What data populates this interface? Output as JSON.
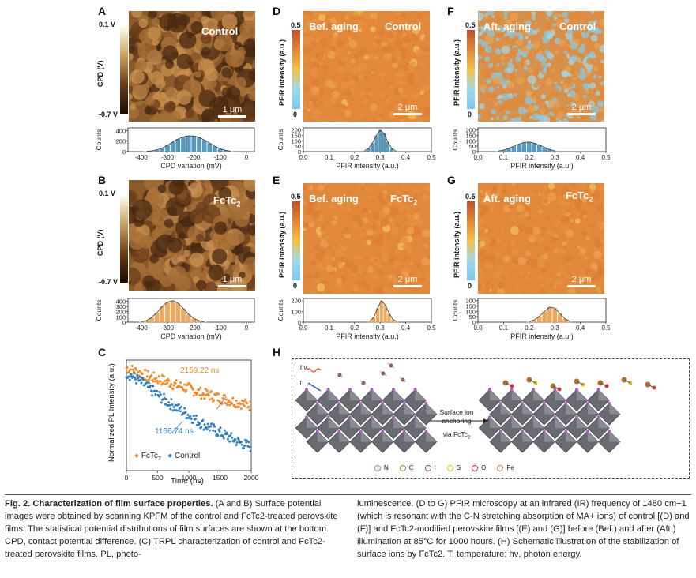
{
  "panels": {
    "A": {
      "letter": "A",
      "label": "Control",
      "cbar_top": "0.1 V",
      "cbar_bottom": "-0.7 V",
      "cbar_title": "CPD (V)",
      "scale": "1 μm",
      "hist_ylabel": "Counts",
      "hist_xlabel": "CPD variation (mV)",
      "hist_xticks": [
        "-400",
        "-300",
        "-200",
        "-100",
        "0"
      ],
      "hist_yticks": [
        "400",
        "200",
        "0"
      ],
      "color": "#2f80b0"
    },
    "B": {
      "letter": "B",
      "label": "FcTc",
      "label_sub": "2",
      "cbar_top": "0.1 V",
      "cbar_bottom": "-0.7 V",
      "cbar_title": "CPD (V)",
      "scale": "1 μm",
      "hist_ylabel": "Counts",
      "hist_xlabel": "CPD variation (mV)",
      "hist_xticks": [
        "-400",
        "-300",
        "-200",
        "-100",
        "0"
      ],
      "hist_yticks": [
        "400",
        "300",
        "200",
        "100",
        "0"
      ],
      "color": "#e8953a"
    },
    "D": {
      "letter": "D",
      "label_left": "Bef. aging",
      "label_right": "Control",
      "cbar_top": "0.5",
      "cbar_bottom": "0",
      "cbar_title": "PFIR intensity (a.u.)",
      "scale": "2 μm",
      "hist_ylabel": "Counts",
      "hist_xlabel": "PFIR intensity (a.u.)",
      "hist_xticks": [
        "0.0",
        "0.1",
        "0.2",
        "0.3",
        "0.4",
        "0.5"
      ],
      "hist_yticks": [
        "200",
        "150",
        "100",
        "50",
        "0"
      ],
      "color": "#2f80b0"
    },
    "E": {
      "letter": "E",
      "label_left": "Bef. aging",
      "label_right": "FcTc",
      "label_sub": "2",
      "cbar_top": "0.5",
      "cbar_bottom": "0",
      "cbar_title": "PFIR intensity (a.u.)",
      "scale": "2 μm",
      "hist_ylabel": "Counts",
      "hist_xlabel": "PFIR intensity (a.u.)",
      "hist_xticks": [
        "0.0",
        "0.1",
        "0.2",
        "0.3",
        "0.4",
        "0.5"
      ],
      "hist_yticks": [
        "200",
        "100",
        "0"
      ],
      "color": "#e8953a"
    },
    "F": {
      "letter": "F",
      "label_left": "Aft. aging",
      "label_right": "Control",
      "cbar_top": "0.5",
      "cbar_bottom": "0",
      "cbar_title": "PFIR intensity (a.u.)",
      "scale": "2 μm",
      "hist_ylabel": "Counts",
      "hist_xlabel": "PFIR intensity (a.u.)",
      "hist_xticks": [
        "0.0",
        "0.1",
        "0.2",
        "0.3",
        "0.4",
        "0.5"
      ],
      "hist_yticks": [
        "200",
        "150",
        "100",
        "50",
        "0"
      ],
      "color": "#2f80b0"
    },
    "G": {
      "letter": "G",
      "label_left": "Aft. aging",
      "label_right": "FcTc",
      "label_sub": "2",
      "cbar_top": "0.5",
      "cbar_bottom": "0",
      "cbar_title": "PFIR intensity (a.u.)",
      "scale": "2 μm",
      "hist_ylabel": "Counts",
      "hist_xlabel": "PFIR intensity (a.u.)",
      "hist_xticks": [
        "0.0",
        "0.1",
        "0.2",
        "0.3",
        "0.4",
        "0.5"
      ],
      "hist_yticks": [
        "200",
        "150",
        "100",
        "50",
        "0"
      ],
      "color": "#e8953a"
    },
    "C": {
      "letter": "C",
      "ylabel": "Normalized PL Intensity (a.u.)",
      "xlabel": "Time (ns)",
      "xticks": [
        "0",
        "500",
        "1000",
        "1500",
        "2000"
      ],
      "ann_fctc": "2159.22 ns",
      "ann_control": "1166.74 ns",
      "legend_fctc": "FcTc",
      "legend_fctc_sub": "2",
      "legend_control": "Control",
      "color_fctc": "#f08a24",
      "color_control": "#2f7fc1"
    },
    "H": {
      "letter": "H",
      "hv": "hν",
      "T": "T",
      "arrow_line1": "Surface ion",
      "arrow_line2": "anchoring",
      "arrow_line3": "via FcTc",
      "arrow_sub": "2",
      "legend": [
        {
          "sym": "N",
          "color": "#8a7fd0"
        },
        {
          "sym": "C",
          "color": "#c47a3a"
        },
        {
          "sym": "I",
          "color": "#a23ab0"
        },
        {
          "sym": "S",
          "color": "#e0c020"
        },
        {
          "sym": "O",
          "color": "#e03030"
        },
        {
          "sym": "Fe",
          "color": "#d08040"
        }
      ]
    }
  },
  "chart_data": [
    {
      "type": "bar",
      "panel": "A",
      "title": "",
      "xlabel": "CPD variation (mV)",
      "ylabel": "Counts",
      "xlim": [
        -450,
        30
      ],
      "ylim": [
        0,
        450
      ],
      "x": [
        -380,
        -360,
        -340,
        -320,
        -300,
        -280,
        -260,
        -240,
        -220,
        -200,
        -180,
        -160,
        -140,
        -120,
        -100,
        -80,
        -60
      ],
      "values": [
        5,
        15,
        35,
        70,
        120,
        180,
        240,
        280,
        300,
        295,
        270,
        220,
        160,
        100,
        55,
        25,
        8
      ]
    },
    {
      "type": "bar",
      "panel": "B",
      "title": "",
      "xlabel": "CPD variation (mV)",
      "ylabel": "Counts",
      "xlim": [
        -450,
        30
      ],
      "ylim": [
        0,
        450
      ],
      "x": [
        -400,
        -380,
        -360,
        -340,
        -320,
        -300,
        -280,
        -260,
        -240,
        -220,
        -200,
        -180,
        -160
      ],
      "values": [
        8,
        30,
        90,
        180,
        300,
        380,
        410,
        360,
        260,
        150,
        70,
        25,
        5
      ]
    },
    {
      "type": "bar",
      "panel": "D",
      "title": "",
      "xlabel": "PFIR intensity (a.u.)",
      "ylabel": "Counts",
      "xlim": [
        0,
        0.5
      ],
      "ylim": [
        0,
        220
      ],
      "x": [
        0.24,
        0.255,
        0.27,
        0.285,
        0.3,
        0.315,
        0.33,
        0.345,
        0.36
      ],
      "values": [
        10,
        30,
        80,
        150,
        200,
        170,
        90,
        30,
        8
      ]
    },
    {
      "type": "bar",
      "panel": "E",
      "title": "",
      "xlabel": "PFIR intensity (a.u.)",
      "ylabel": "Counts",
      "xlim": [
        0,
        0.5
      ],
      "ylim": [
        0,
        220
      ],
      "x": [
        0.26,
        0.275,
        0.29,
        0.305,
        0.32,
        0.335,
        0.35,
        0.365
      ],
      "values": [
        10,
        45,
        130,
        200,
        160,
        80,
        25,
        5
      ]
    },
    {
      "type": "bar",
      "panel": "F",
      "title": "",
      "xlabel": "PFIR intensity (a.u.)",
      "ylabel": "Counts",
      "xlim": [
        0,
        0.5
      ],
      "ylim": [
        0,
        220
      ],
      "x": [
        0.08,
        0.1,
        0.12,
        0.14,
        0.16,
        0.18,
        0.2,
        0.22,
        0.24,
        0.26,
        0.28,
        0.3
      ],
      "values": [
        5,
        15,
        30,
        50,
        70,
        85,
        90,
        80,
        60,
        40,
        20,
        8
      ]
    },
    {
      "type": "bar",
      "panel": "G",
      "title": "",
      "xlabel": "PFIR intensity (a.u.)",
      "ylabel": "Counts",
      "xlim": [
        0,
        0.5
      ],
      "ylim": [
        0,
        220
      ],
      "x": [
        0.2,
        0.22,
        0.24,
        0.26,
        0.28,
        0.3,
        0.32,
        0.34,
        0.36
      ],
      "values": [
        5,
        20,
        55,
        100,
        140,
        130,
        80,
        30,
        8
      ]
    },
    {
      "type": "scatter",
      "panel": "C",
      "title": "",
      "xlabel": "Time (ns)",
      "ylabel": "Normalized PL Intensity (a.u.)",
      "xlim": [
        0,
        2000
      ],
      "series": [
        {
          "name": "FcTc2",
          "x": [
            0,
            200,
            400,
            600,
            800,
            1000,
            1200,
            1400,
            1600,
            1800,
            2000
          ],
          "y": [
            1.0,
            0.97,
            0.94,
            0.92,
            0.89,
            0.87,
            0.84,
            0.82,
            0.8,
            0.78,
            0.76
          ]
        },
        {
          "name": "Control",
          "x": [
            0,
            200,
            400,
            600,
            800,
            1000,
            1200,
            1400,
            1600,
            1800,
            2000
          ],
          "y": [
            0.97,
            0.92,
            0.86,
            0.8,
            0.75,
            0.7,
            0.65,
            0.61,
            0.57,
            0.53,
            0.5
          ]
        }
      ]
    }
  ],
  "caption": {
    "left": [
      {
        "b": "Fig. 2. Characterization of film surface properties. (",
        "t": ""
      },
      {
        "b": "A",
        "t": " and "
      },
      {
        "b": "B",
        "t": ") Surface potential images were obtained by scanning KPFM of the control and FcTc"
      }
    ],
    "left_text": "Fig. 2. Characterization of film surface properties.",
    "left_rest": " (A and B) Surface potential images were obtained by scanning KPFM of the control and FcTc2-treated perovskite films. The statistical potential distributions of film surfaces are shown at the bottom. CPD, contact potential difference. (C) TRPL characterization of control and FcTc2-treated perovskite films. PL, photo-",
    "right_rest": "luminescence. (D to G) PFIR microscopy at an infrared (IR) frequency of 1480 cm−1 (which is resonant with the C-N stretching absorption of MA+ ions) of control [(D) and (F)] and FcTc2-modified perovskite films [(E) and (G)] before (Bef.) and after (Aft.) illumination at 85°C for 1000 hours. (H) Schematic illustration of the stabilization of surface ions by FcTc2. T, temperature; hν, photon energy."
  }
}
